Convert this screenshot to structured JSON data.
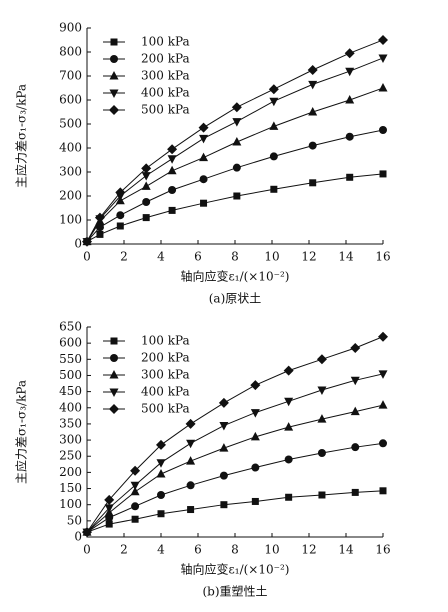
{
  "chart_data": [
    {
      "type": "line",
      "caption": "(a)原状土",
      "y_label": "主应力差σ₁-σ₃/kPa",
      "x_label": "轴向应变ε₁/(×10⁻²)",
      "x": [
        0,
        0.7,
        1.8,
        3.2,
        4.6,
        6.3,
        8.1,
        10.1,
        12.2,
        14.2,
        16
      ],
      "xlim": [
        0,
        16
      ],
      "xticks": [
        0,
        2,
        4,
        6,
        8,
        10,
        12,
        14,
        16
      ],
      "ylim": [
        0,
        900
      ],
      "yticks": [
        0,
        100,
        200,
        300,
        400,
        500,
        600,
        700,
        800,
        900
      ],
      "legend": "upper-left",
      "series": [
        {
          "name": "100 kPa",
          "color": "#111111",
          "marker": "square",
          "values": [
            10,
            40,
            75,
            110,
            140,
            170,
            200,
            228,
            255,
            278,
            292
          ]
        },
        {
          "name": "200 kPa",
          "color": "#111111",
          "marker": "circle",
          "values": [
            10,
            70,
            120,
            175,
            225,
            270,
            318,
            365,
            410,
            447,
            475
          ]
        },
        {
          "name": "300 kPa",
          "color": "#111111",
          "marker": "triangle-up",
          "values": [
            10,
            95,
            180,
            240,
            305,
            360,
            425,
            490,
            550,
            600,
            650
          ]
        },
        {
          "name": "400 kPa",
          "color": "#111111",
          "marker": "triangle-down",
          "values": [
            10,
            105,
            200,
            285,
            355,
            440,
            510,
            595,
            665,
            720,
            775
          ]
        },
        {
          "name": "500 kPa",
          "color": "#111111",
          "marker": "diamond",
          "values": [
            10,
            110,
            215,
            315,
            395,
            485,
            570,
            645,
            725,
            795,
            850
          ]
        }
      ]
    },
    {
      "type": "line",
      "caption": "(b)重塑性土",
      "y_label": "主应力差σ₁-σ₃/kPa",
      "x_label": "轴向应变ε₁/(×10⁻²)",
      "x": [
        0,
        1.2,
        2.6,
        4,
        5.6,
        7.4,
        9.1,
        10.9,
        12.7,
        14.5,
        16
      ],
      "xlim": [
        0,
        16
      ],
      "xticks": [
        0,
        2,
        4,
        6,
        8,
        10,
        12,
        14,
        16
      ],
      "ylim": [
        0,
        650
      ],
      "yticks": [
        0,
        50,
        100,
        150,
        200,
        250,
        300,
        350,
        400,
        450,
        500,
        550,
        600,
        650
      ],
      "legend": "upper-left",
      "series": [
        {
          "name": "100 kPa",
          "color": "#111111",
          "marker": "square",
          "values": [
            15,
            40,
            55,
            72,
            85,
            100,
            110,
            123,
            130,
            138,
            143
          ]
        },
        {
          "name": "200 kPa",
          "color": "#111111",
          "marker": "circle",
          "values": [
            15,
            60,
            95,
            130,
            160,
            190,
            215,
            240,
            260,
            278,
            290
          ]
        },
        {
          "name": "300 kPa",
          "color": "#111111",
          "marker": "triangle-up",
          "values": [
            15,
            75,
            140,
            195,
            235,
            275,
            310,
            340,
            365,
            388,
            408
          ]
        },
        {
          "name": "400 kPa",
          "color": "#111111",
          "marker": "triangle-down",
          "values": [
            15,
            90,
            160,
            230,
            290,
            345,
            385,
            420,
            455,
            485,
            505
          ]
        },
        {
          "name": "500 kPa",
          "color": "#111111",
          "marker": "diamond",
          "values": [
            15,
            115,
            205,
            285,
            350,
            415,
            470,
            515,
            550,
            585,
            620
          ]
        }
      ]
    }
  ]
}
